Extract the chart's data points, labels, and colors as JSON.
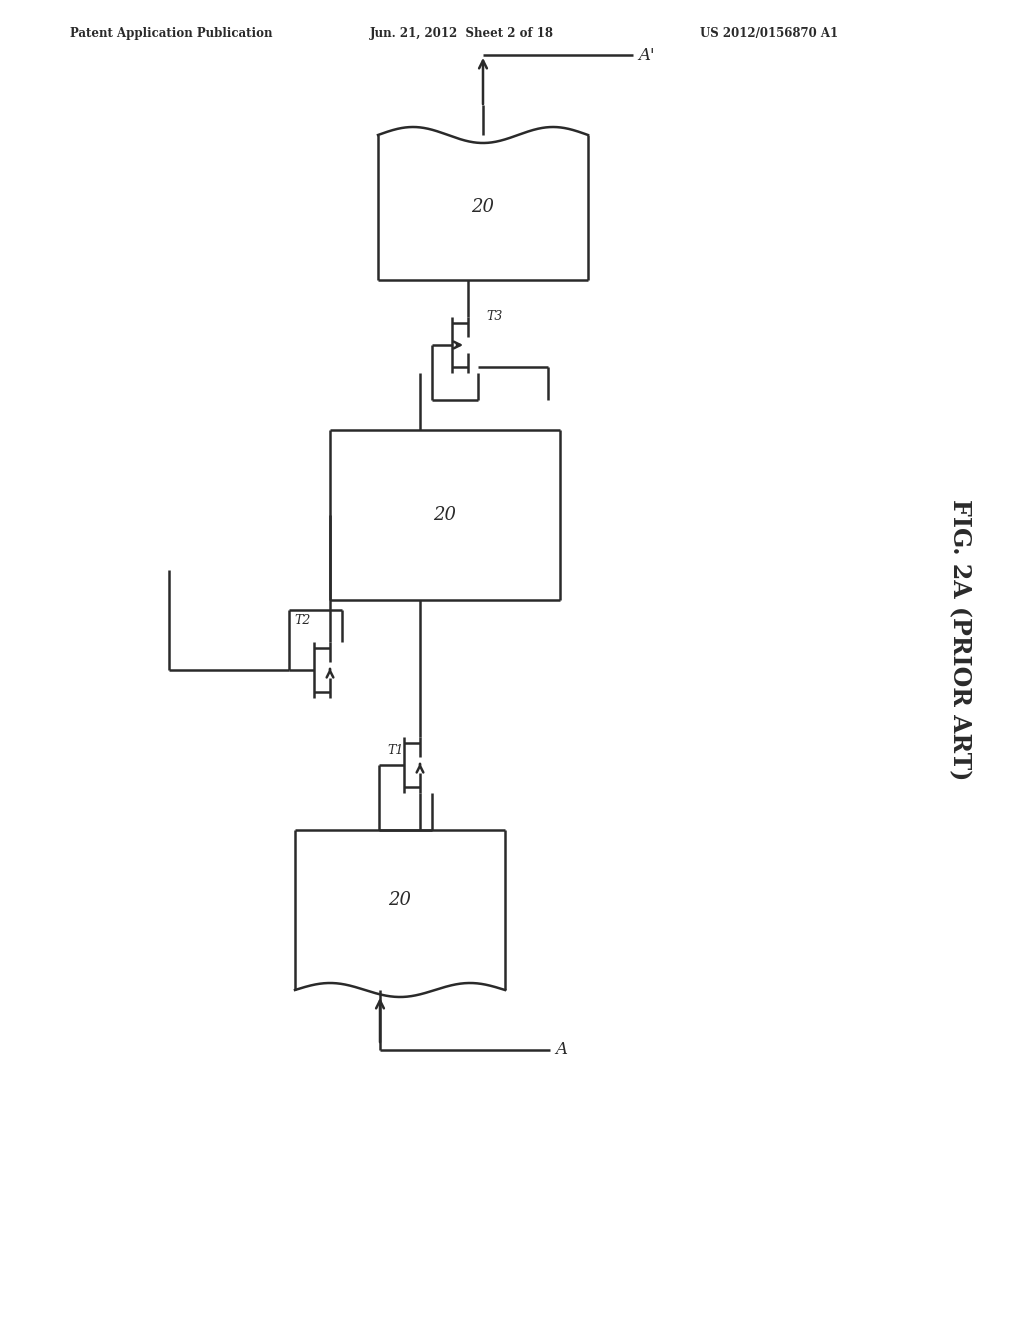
{
  "bg_color": "#ffffff",
  "line_color": "#2a2a2a",
  "header_left": "Patent Application Publication",
  "header_mid": "Jun. 21, 2012  Sheet 2 of 18",
  "header_right": "US 2012/0156870 A1",
  "fig_label": "FIG. 2A (PRIOR ART)",
  "chip_label": "20",
  "t1_label": "T1",
  "t2_label": "T2",
  "t3_label": "T3",
  "a_label": "A",
  "aprime_label": "A'"
}
